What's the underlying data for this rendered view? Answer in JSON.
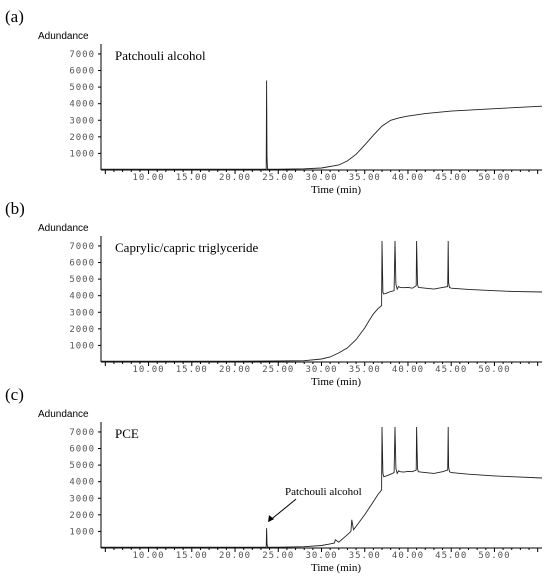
{
  "chart_data": [
    {
      "panel": "(a)",
      "type": "line",
      "title": "Patchouli alcohol",
      "ylabel": "Adundance",
      "xlabel": "Time (min)",
      "yticks": [
        "1000",
        "2000",
        "3000",
        "4000",
        "5000",
        "6000",
        "7000"
      ],
      "xticks": [
        "10.00",
        "15.00",
        "20.00",
        "25.00",
        "30.00",
        "35.00",
        "40.00",
        "45.00",
        "50.00"
      ],
      "xlim": [
        4.5,
        55.5
      ],
      "ylim": [
        0,
        7600
      ],
      "series": [
        {
          "x": [
            4.5,
            10,
            15,
            20,
            23.6,
            23.65,
            23.7,
            23.75,
            23.8,
            25,
            28,
            30,
            32,
            33,
            34,
            35,
            36,
            37,
            38,
            39,
            40,
            42,
            45,
            50,
            55.5
          ],
          "y": [
            50,
            50,
            50,
            50,
            50,
            5400,
            800,
            50,
            50,
            50,
            70,
            120,
            300,
            550,
            950,
            1500,
            2100,
            2650,
            3000,
            3150,
            3250,
            3400,
            3550,
            3700,
            3850
          ]
        }
      ],
      "annotations": []
    },
    {
      "panel": "(b)",
      "type": "line",
      "title": "Caprylic/capric triglyceride",
      "ylabel": "Adundance",
      "xlabel": "Time (min)",
      "yticks": [
        "1000",
        "2000",
        "3000",
        "4000",
        "5000",
        "6000",
        "7000"
      ],
      "xticks": [
        "10.00",
        "15.00",
        "20.00",
        "25.00",
        "30.00",
        "35.00",
        "40.00",
        "45.00",
        "50.00"
      ],
      "xlim": [
        4.5,
        55.5
      ],
      "ylim": [
        0,
        7600
      ],
      "series": [
        {
          "x": [
            4.5,
            20,
            25,
            28,
            30,
            31,
            32,
            33,
            34,
            35,
            35.5,
            36,
            36.5,
            36.95,
            37.0,
            37.1,
            37.2,
            37.5,
            38,
            38.4,
            38.5,
            38.6,
            38.75,
            38.9,
            39.1,
            39.5,
            40,
            40.5,
            40.95,
            41.0,
            41.1,
            41.2,
            41.5,
            42,
            43,
            44,
            44.6,
            44.65,
            44.7,
            44.8,
            45,
            47,
            50,
            52,
            55.5
          ],
          "y": [
            50,
            50,
            60,
            80,
            180,
            300,
            550,
            850,
            1350,
            2050,
            2500,
            2900,
            3200,
            3400,
            7300,
            4200,
            4100,
            4150,
            4250,
            4300,
            7300,
            4700,
            4400,
            4550,
            4500,
            4480,
            4500,
            4450,
            4600,
            7300,
            4700,
            4500,
            4480,
            4450,
            4400,
            4500,
            4550,
            7300,
            4800,
            4500,
            4450,
            4380,
            4300,
            4260,
            4220
          ]
        }
      ],
      "annotations": []
    },
    {
      "panel": "(c)",
      "type": "line",
      "title": "PCE",
      "ylabel": "Adundance",
      "xlabel": "Time (min)",
      "yticks": [
        "1000",
        "2000",
        "3000",
        "4000",
        "5000",
        "6000",
        "7000"
      ],
      "xticks": [
        "10.00",
        "15.00",
        "20.00",
        "25.00",
        "30.00",
        "35.00",
        "40.00",
        "45.00",
        "50.00"
      ],
      "xlim": [
        4.5,
        55.5
      ],
      "ylim": [
        0,
        7600
      ],
      "series": [
        {
          "x": [
            4.5,
            20,
            23.6,
            23.65,
            23.7,
            23.75,
            25,
            28,
            30,
            31,
            31.5,
            31.6,
            32,
            33,
            33.4,
            33.5,
            33.7,
            34,
            35,
            36,
            36.5,
            36.95,
            37.0,
            37.1,
            37.2,
            37.5,
            38,
            38.4,
            38.5,
            38.6,
            38.75,
            38.9,
            39.1,
            39.5,
            40,
            40.5,
            40.95,
            41.0,
            41.1,
            41.2,
            41.5,
            42,
            43,
            44,
            44.6,
            44.65,
            44.7,
            44.8,
            45,
            47,
            50,
            52,
            55.5
          ],
          "y": [
            50,
            50,
            50,
            1200,
            300,
            50,
            50,
            80,
            150,
            250,
            300,
            500,
            350,
            800,
            1000,
            1700,
            1100,
            1300,
            2000,
            2800,
            3200,
            3500,
            7300,
            4500,
            4300,
            4350,
            4450,
            4550,
            7300,
            4800,
            4500,
            4650,
            4600,
            4580,
            4620,
            4600,
            4700,
            7300,
            4800,
            4600,
            4580,
            4550,
            4500,
            4600,
            4700,
            7300,
            4900,
            4600,
            4550,
            4450,
            4350,
            4300,
            4220
          ]
        }
      ],
      "annotations": [
        {
          "text": "Patchouli alcohol",
          "x": 23.7,
          "y": 1500
        }
      ]
    }
  ]
}
